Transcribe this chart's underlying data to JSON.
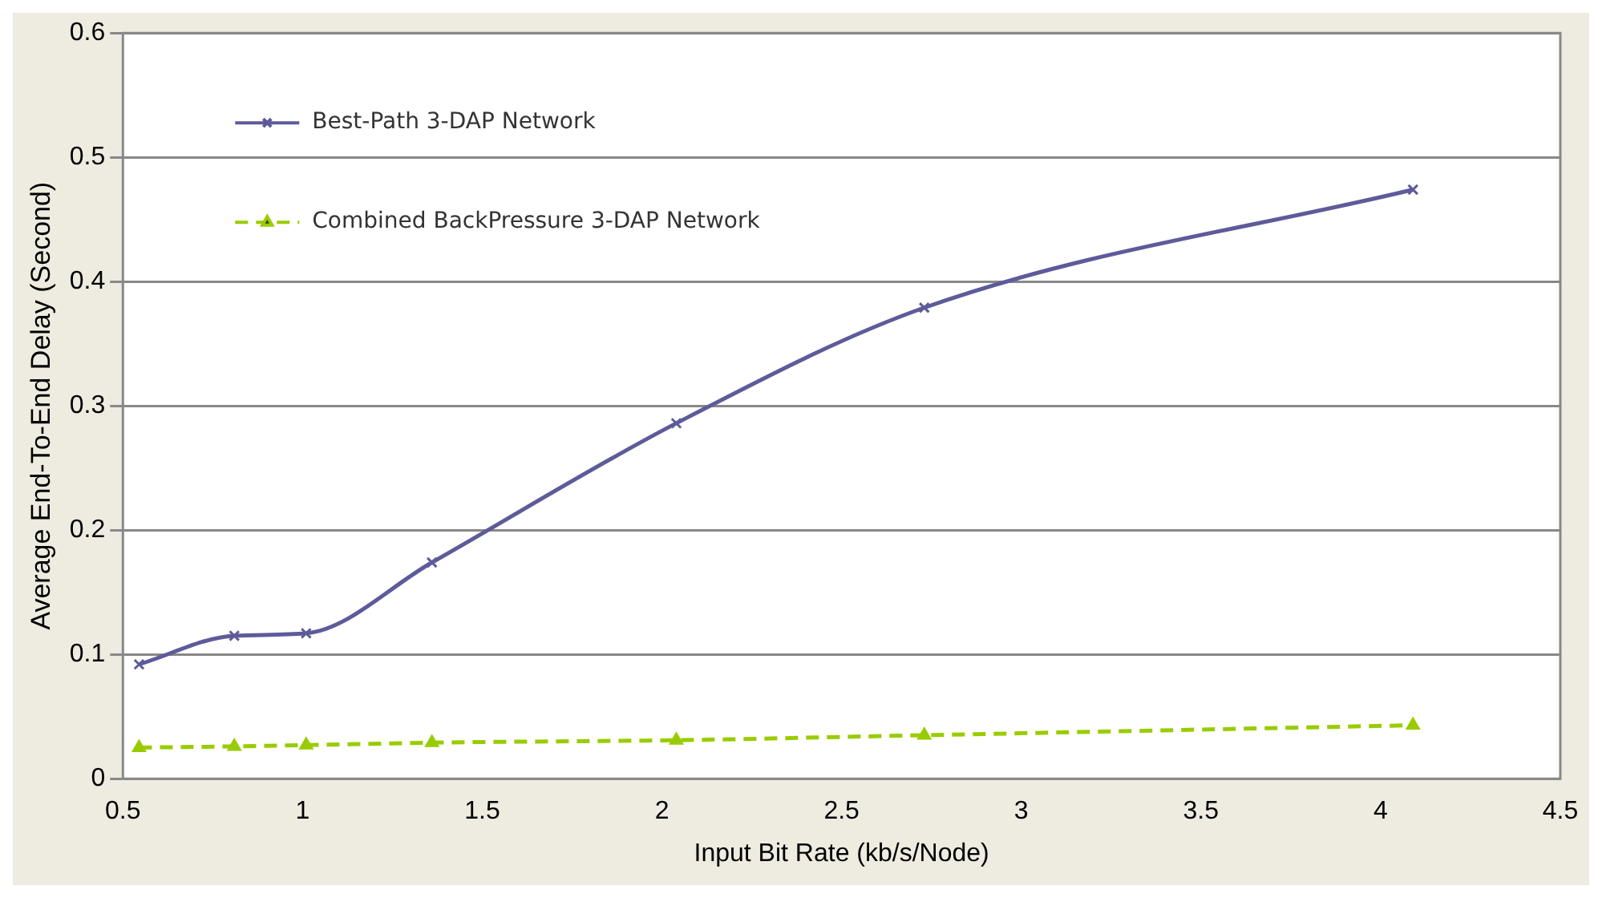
{
  "chart_data": {
    "type": "line",
    "xlabel": "Input Bit Rate (kb/s/Node)",
    "ylabel": "Average End-To-End Delay (Second)",
    "xlim": [
      0.5,
      4.5
    ],
    "xticks": [
      0.5,
      1,
      1.5,
      2,
      2.5,
      3,
      3.5,
      4,
      4.5
    ],
    "ylim": [
      0,
      0.6
    ],
    "yticks": [
      0,
      0.1,
      0.2,
      0.3,
      0.4,
      0.5,
      0.6
    ],
    "grid": "y",
    "legend": "top left",
    "x": [
      0.545,
      0.81,
      1.01,
      1.36,
      2.04,
      2.73,
      4.09
    ],
    "series": [
      {
        "name": "Best-Path 3-DAP Network",
        "color": "#5e5b9a",
        "marker": "cross",
        "line_style": "solid",
        "values": [
          0.092,
          0.115,
          0.117,
          0.174,
          0.286,
          0.379,
          0.474
        ]
      },
      {
        "name": "Combined BackPressure 3-DAP Network",
        "color": "#99cc00",
        "marker": "triangle",
        "line_style": "dashed",
        "values": [
          0.025,
          0.026,
          0.027,
          0.029,
          0.031,
          0.035,
          0.043
        ]
      }
    ]
  }
}
